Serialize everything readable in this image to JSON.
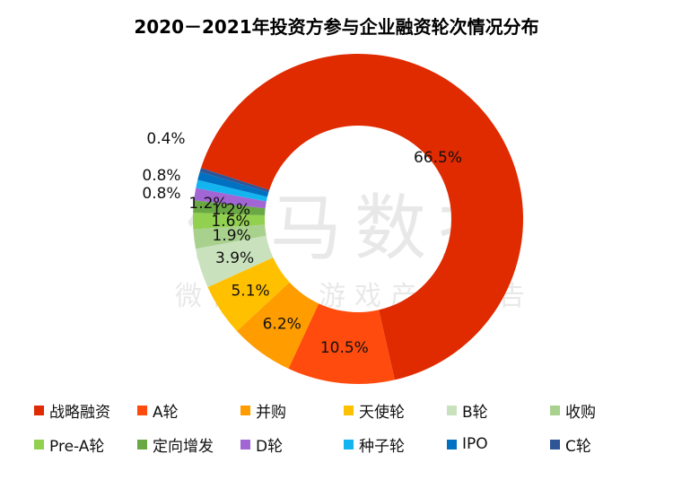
{
  "chart_data": {
    "type": "pie",
    "variant": "donut",
    "title": "2020－2021年投资方参与企业融资轮次情况分布",
    "categories": [
      "战略融资",
      "A轮",
      "并购",
      "天使轮",
      "B轮",
      "收购",
      "Pre-A轮",
      "定向增发",
      "D轮",
      "种子轮",
      "IPO",
      "C轮"
    ],
    "values": [
      66.5,
      10.5,
      6.2,
      5.1,
      3.9,
      1.9,
      1.6,
      1.2,
      1.2,
      0.8,
      0.8,
      0.4
    ],
    "labels": [
      "66.5%",
      "10.5%",
      "6.2%",
      "5.1%",
      "3.9%",
      "1.9%",
      "1.6%",
      "1.2%",
      "1.2%",
      "0.8%",
      "0.8%",
      "0.4%"
    ],
    "colors": [
      "#e02a00",
      "#ff4b0d",
      "#ff9c00",
      "#ffc000",
      "#c9e2bd",
      "#a9d18e",
      "#92d050",
      "#6aa843",
      "#a266d4",
      "#14b4f0",
      "#0070c0",
      "#2f5597"
    ],
    "legend_position": "bottom"
  },
  "watermark": {
    "line1": "伽马数据",
    "line2": "微信号：游戏产业报告"
  }
}
